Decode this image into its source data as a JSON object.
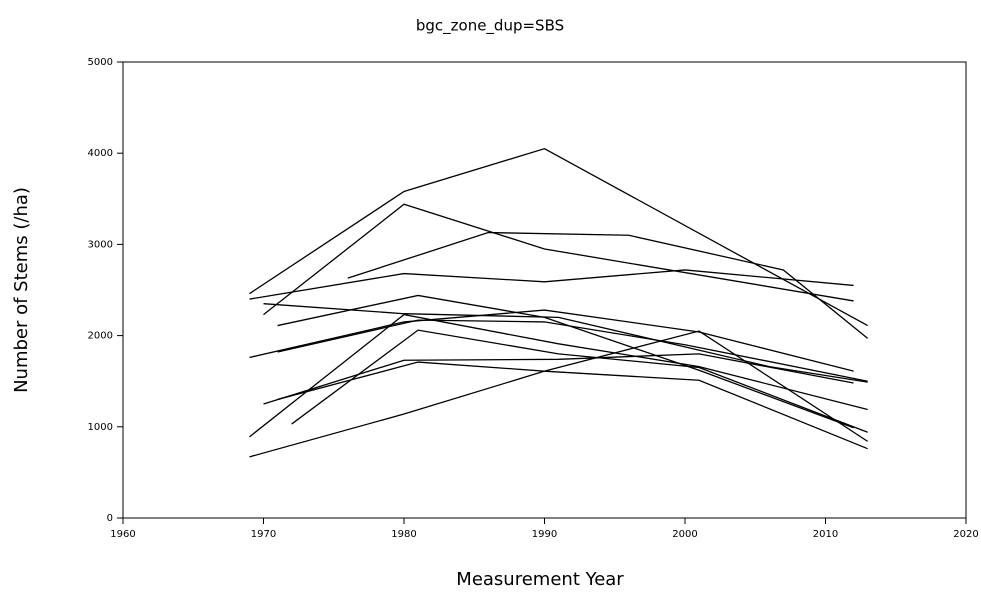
{
  "chart_data": {
    "type": "line",
    "title": "bgc_zone_dup=SBS",
    "x_label": "Measurement Year",
    "y_label": "Number of Stems (/ha)",
    "xlim": [
      1960,
      2020
    ],
    "xticks": [
      1960,
      1970,
      1980,
      1990,
      2000,
      2010,
      2020
    ],
    "ylim": [
      0,
      5000
    ],
    "yticks": [
      0,
      1000,
      2000,
      3000,
      4000,
      5000
    ],
    "series": [
      {
        "color": "#000000",
        "x": [
          1969,
          1980,
          1990,
          2013
        ],
        "values": [
          2460,
          3580,
          4050,
          2110
        ]
      },
      {
        "color": "#000000",
        "x": [
          1969,
          1980,
          1990,
          2000,
          2012
        ],
        "values": [
          2400,
          2680,
          2590,
          2720,
          2550
        ]
      },
      {
        "color": "#000000",
        "x": [
          1976,
          1986,
          1996,
          2007,
          2013
        ],
        "values": [
          2630,
          3130,
          3100,
          2720,
          1970
        ]
      },
      {
        "color": "#000000",
        "x": [
          1970,
          1980,
          1990,
          2012
        ],
        "values": [
          2230,
          3440,
          2950,
          2380
        ]
      },
      {
        "color": "#000000",
        "x": [
          1971,
          1981,
          1990,
          2001,
          2012
        ],
        "values": [
          2110,
          2440,
          2200,
          1620,
          990
        ]
      },
      {
        "color": "#000000",
        "x": [
          1969,
          1980,
          1990,
          2001,
          2012
        ],
        "values": [
          1760,
          2150,
          2280,
          2040,
          1610
        ]
      },
      {
        "color": "#000000",
        "x": [
          1971,
          1981,
          1990,
          2000,
          2013
        ],
        "values": [
          1820,
          2170,
          2150,
          1900,
          1500
        ]
      },
      {
        "color": "#000000",
        "x": [
          1970,
          1980,
          1991,
          2001,
          2012
        ],
        "values": [
          1250,
          1730,
          1740,
          1800,
          1480
        ]
      },
      {
        "color": "#000000",
        "x": [
          1969,
          1980,
          1991,
          2001,
          2013
        ],
        "values": [
          890,
          2230,
          1910,
          1660,
          1190
        ]
      },
      {
        "color": "#000000",
        "x": [
          1972,
          1981,
          1991,
          2001,
          2013
        ],
        "values": [
          1030,
          2060,
          1800,
          1650,
          940
        ]
      },
      {
        "color": "#000000",
        "x": [
          1971,
          1981,
          1990,
          2001,
          2013
        ],
        "values": [
          1300,
          1710,
          1610,
          1510,
          760
        ]
      },
      {
        "color": "#000000",
        "x": [
          1969,
          1980,
          1990,
          2001,
          2013
        ],
        "values": [
          670,
          1140,
          1610,
          2050,
          840
        ]
      },
      {
        "color": "#000000",
        "x": [
          1970,
          1980,
          1991,
          2006,
          2013
        ],
        "values": [
          2350,
          2240,
          2200,
          1660,
          1490
        ]
      }
    ]
  }
}
